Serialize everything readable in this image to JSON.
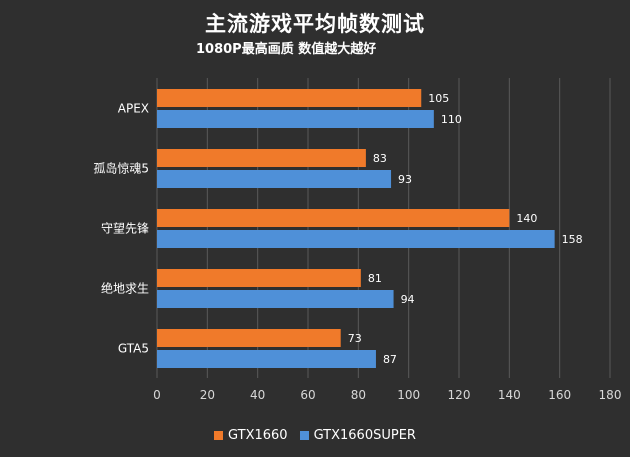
{
  "colors": {
    "background": "#2f2f2f",
    "grid": "#5a5a5a",
    "axis_text": "#d8d8d8",
    "label_text": "#ffffff"
  },
  "chart_data": {
    "type": "bar",
    "orientation": "horizontal",
    "title": "主流游戏平均帧数测试",
    "subtitle": "1080P最高画质 数值越大越好",
    "categories": [
      "APEX",
      "孤岛惊魂5",
      "守望先锋",
      "绝地求生",
      "GTA5"
    ],
    "series": [
      {
        "name": "GTX1660",
        "color": "#f07a2a",
        "values": [
          105,
          83,
          140,
          81,
          73
        ]
      },
      {
        "name": "GTX1660SUPER",
        "color": "#4f90d8",
        "values": [
          110,
          93,
          158,
          94,
          87
        ]
      }
    ],
    "xlim": [
      0,
      180
    ],
    "xticks": [
      0,
      20,
      40,
      60,
      80,
      100,
      120,
      140,
      160,
      180
    ],
    "grid": true,
    "legend_position": "bottom"
  }
}
